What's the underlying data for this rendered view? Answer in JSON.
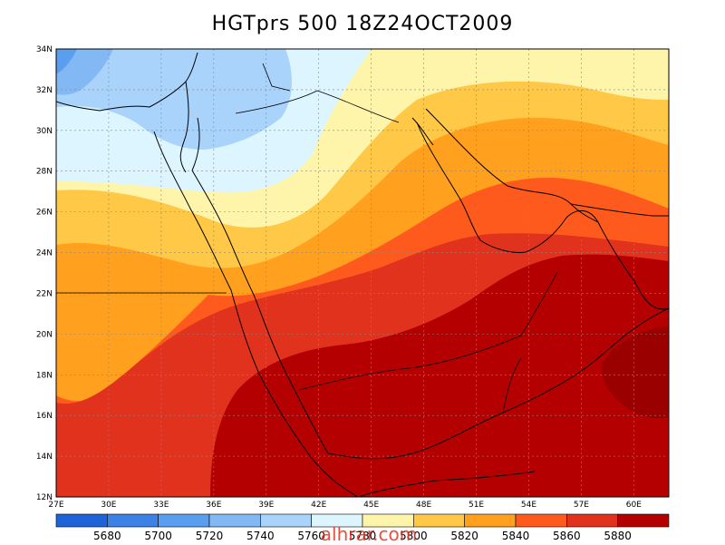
{
  "title": "HGTprs 500 18Z24OCT2009",
  "watermark": "alhrar.com",
  "map": {
    "lon_range": [
      27,
      62
    ],
    "lat_range": [
      12,
      34
    ],
    "lon_ticks": [
      "27E",
      "30E",
      "33E",
      "36E",
      "39E",
      "42E",
      "45E",
      "48E",
      "51E",
      "54E",
      "57E",
      "60E"
    ],
    "lat_ticks": [
      "34N",
      "32N",
      "30N",
      "28N",
      "26N",
      "24N",
      "22N",
      "20N",
      "18N",
      "16N",
      "14N",
      "12N"
    ],
    "field": "500 hPa geopotential height (gpm)"
  },
  "colorbar": {
    "levels": [
      "5680",
      "5700",
      "5720",
      "5740",
      "5760",
      "5780",
      "5800",
      "5820",
      "5840",
      "5860",
      "5880"
    ],
    "colors": [
      "#1e64d8",
      "#3c82e6",
      "#5a9ef0",
      "#82b9f5",
      "#a9d3fb",
      "#dcf5ff",
      "#fff5aa",
      "#ffc846",
      "#ffa01e",
      "#ff5a1e",
      "#e1321e",
      "#b40000"
    ]
  },
  "contour_colors": {
    "c5700": "#3c82e6",
    "c5720": "#5a9ef0",
    "c5740": "#82b9f5",
    "c5760": "#a9d3fb",
    "c5780": "#dcf5ff",
    "c5800": "#fff5aa",
    "c5820": "#ffc846",
    "c5840": "#ffa01e",
    "c5860": "#ff5a1e",
    "c5880": "#e1321e",
    "c5900": "#b40000"
  }
}
